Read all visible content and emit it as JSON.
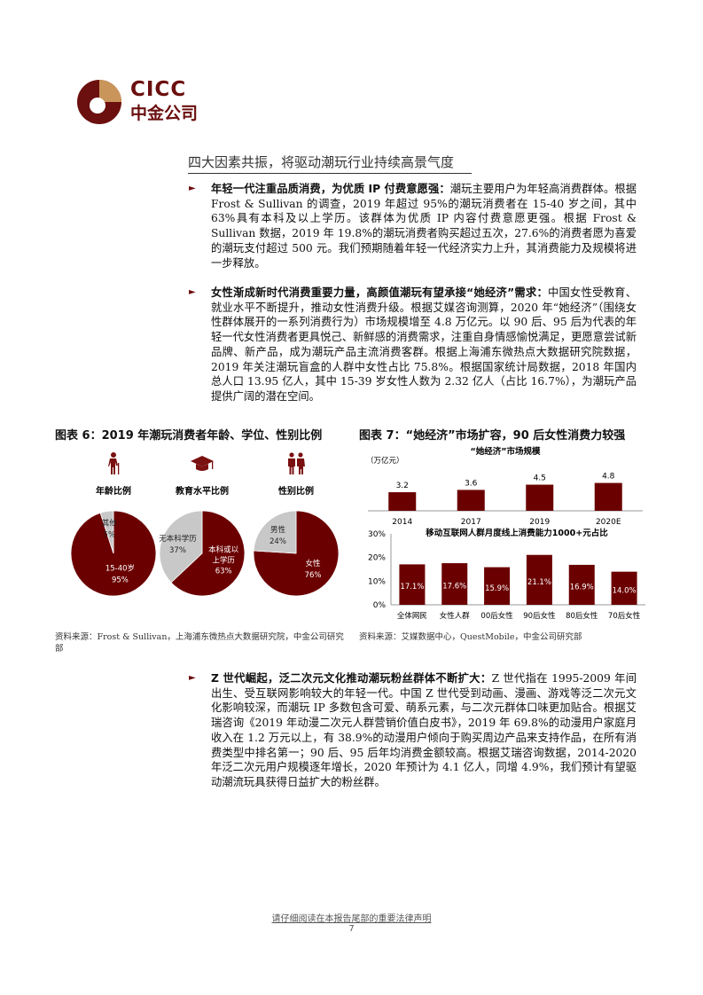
{
  "header": {
    "logo_en": "CICC",
    "logo_cn": "中金公司",
    "brand_color": "#6b0f0f",
    "accent_gold": "#c9955a"
  },
  "section_title": "四大因素共振，将驱动潮玩行业持续高景气度",
  "bullets": [
    {
      "lead": "年轻一代注重品质消费，为优质 IP 付费意愿强：",
      "body": "潮玩主要用户为年轻高消费群体。根据 Frost & Sullivan 的调查，2019 年超过 95%的潮玩消费者在 15-40 岁之间，其中 63%具有本科及以上学历。该群体为优质 IP 内容付费意愿更强。根据 Frost & Sullivan 数据，2019 年 19.8%的潮玩消费者购买超过五次，27.6%的消费者愿为喜爱的潮玩支付超过 500 元。我们预期随着年轻一代经济实力上升，其消费能力及规模将进一步释放。"
    },
    {
      "lead": "女性渐成新时代消费重要力量，高颜值潮玩有望承接“她经济”需求：",
      "body": "中国女性受教育、就业水平不断提升，推动女性消费升级。根据艾媒咨询测算，2020 年“她经济”（围绕女性群体展开的一系列消费行为）市场规模增至 4.8 万亿元。以 90 后、95 后为代表的年轻一代女性消费者更具悦己、新鲜感的消费需求，注重自身情感愉悦满足，更愿意尝试新品牌、新产品，成为潮玩产品主流消费客群。根据上海浦东微热点大数据研究院数据，2019 年关注潮玩盲盒的人群中女性占比 75.8%。根据国家统计局数据，2018 年国内总人口 13.95 亿人，其中 15-39 岁女性人数为 2.32 亿人（占比 16.7%），为潮玩产品提供广阔的潜在空间。"
    },
    {
      "lead": "Z 世代崛起，泛二次元文化推动潮玩粉丝群体不断扩大：",
      "body": "Z 世代指在 1995-2009 年间出生、受互联网影响较大的年轻一代。中国 Z 世代受到动画、漫画、游戏等泛二次元文化影响较深，而潮玩 IP 多数包含可爱、萌系元素，与二次元群体口味更加贴合。根据艾瑞咨询《2019 年动漫二次元人群营销价值白皮书》，2019 年 69.8%的动漫用户家庭月收入在 1.2 万元以上，有 38.9%的动漫用户倾向于购买周边产品来支持作品，在所有消费类型中排名第一；90 后、95 后年均消费金额较高。根据艾瑞咨询数据，2014-2020 年泛二次元用户规模逐年增长，2020 年预计为 4.1 亿人，同增 4.9%，我们预计有望驱动潮流玩具获得日益扩大的粉丝群。"
    }
  ],
  "figure6": {
    "title": "图表 6：2019 年潮玩消费者年龄、学位、性别比例",
    "source": "资料来源：Frost & Sullivan，上海浦东微热点大数据研究院，中金公司研究部"
  },
  "figure7": {
    "title": "图表 7：“她经济”市场扩容，90 后女性消费力较强",
    "source": "资料来源：艾媒数据中心，QuestMobile，中金公司研究部"
  },
  "chart_data": [
    {
      "type": "pie",
      "title": "年龄比例",
      "icon": "elderly-person-icon",
      "slices": [
        {
          "label": "15-40岁",
          "value": 95,
          "color": "#6b0000"
        },
        {
          "label": "其他",
          "value": 5,
          "color": "#c8c8c8"
        }
      ]
    },
    {
      "type": "pie",
      "title": "教育水平比例",
      "icon": "graduation-cap-icon",
      "slices": [
        {
          "label": "本科或以上学历",
          "value": 63,
          "color": "#6b0000"
        },
        {
          "label": "无本科学历",
          "value": 37,
          "color": "#c8c8c8"
        }
      ]
    },
    {
      "type": "pie",
      "title": "性别比例",
      "icon": "couple-icon",
      "slices": [
        {
          "label": "女性",
          "value": 76,
          "color": "#6b0000"
        },
        {
          "label": "男性",
          "value": 24,
          "color": "#c8c8c8"
        }
      ]
    },
    {
      "type": "bar",
      "title": "“她经济”市场规模",
      "ylabel": "（万亿元）",
      "categories": [
        "2014",
        "2017",
        "2019",
        "2020E"
      ],
      "values": [
        3.2,
        3.6,
        4.5,
        4.8
      ],
      "labels": [
        "3.2",
        "3.6",
        "4.5",
        "4.8"
      ],
      "color": "#6b0000"
    },
    {
      "type": "bar",
      "title": "移动互联网人群月度线上消费能力1000+元占比",
      "categories": [
        "全体网民",
        "女性人群",
        "00后女性",
        "90后女性",
        "80后女性",
        "70后女性"
      ],
      "values": [
        17.1,
        17.6,
        15.9,
        21.1,
        16.9,
        14.0
      ],
      "labels": [
        "17.1%",
        "17.6%",
        "15.9%",
        "21.1%",
        "16.9%",
        "14.0%"
      ],
      "ylim": [
        0,
        30
      ],
      "yticks": [
        "0%",
        "10%",
        "20%",
        "30%"
      ],
      "color": "#6b0000"
    }
  ],
  "footer": {
    "disclaimer": "请仔细阅读在本报告尾部的重要法律声明",
    "page": "7"
  }
}
